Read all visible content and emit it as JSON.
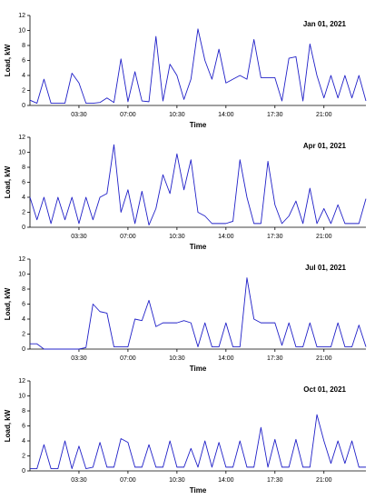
{
  "chart_data": [
    {
      "type": "line",
      "title": "Jan 01, 2021",
      "x_label": "Time",
      "y_label": "Load, kW",
      "color": "#2020c8",
      "xlim": [
        0,
        24
      ],
      "ylim": [
        0,
        12
      ],
      "yticks": [
        0,
        2,
        4,
        6,
        8,
        10,
        12
      ],
      "xticks": [
        {
          "value": 3.5,
          "label": "03:30"
        },
        {
          "value": 7,
          "label": "07:00"
        },
        {
          "value": 10.5,
          "label": "10:30"
        },
        {
          "value": 14,
          "label": "14:00"
        },
        {
          "value": 17.5,
          "label": "17:30"
        },
        {
          "value": 21,
          "label": "21:00"
        }
      ],
      "x": [
        0,
        0.5,
        1,
        1.5,
        2,
        2.5,
        3,
        3.5,
        4,
        4.5,
        5,
        5.5,
        6,
        6.5,
        7,
        7.5,
        8,
        8.5,
        9,
        9.5,
        10,
        10.5,
        11,
        11.5,
        12,
        12.5,
        13,
        13.5,
        14,
        14.5,
        15,
        15.5,
        16,
        16.5,
        17,
        17.5,
        18,
        18.5,
        19,
        19.5,
        20,
        20.5,
        21,
        21.5,
        22,
        22.5,
        23,
        23.5,
        24
      ],
      "values": [
        0.7,
        0.3,
        3.5,
        0.3,
        0.3,
        0.3,
        4.3,
        3.0,
        0.3,
        0.3,
        0.4,
        1.0,
        0.4,
        6.2,
        0.5,
        4.5,
        0.6,
        0.5,
        9.2,
        0.6,
        5.5,
        4.0,
        0.8,
        3.5,
        10.2,
        6.0,
        3.5,
        7.5,
        3.0,
        3.5,
        4.0,
        3.5,
        8.8,
        3.7,
        3.7,
        3.7,
        0.6,
        6.3,
        6.5,
        0.6,
        8.2,
        4.0,
        1.0,
        4.0,
        1.0,
        4.0,
        1.0,
        4.0,
        0.6
      ]
    },
    {
      "type": "line",
      "title": "Apr 01, 2021",
      "x_label": "Time",
      "y_label": "Load, kW",
      "color": "#2020c8",
      "xlim": [
        0,
        24
      ],
      "ylim": [
        0,
        12
      ],
      "yticks": [
        0,
        2,
        4,
        6,
        8,
        10,
        12
      ],
      "xticks": [
        {
          "value": 3.5,
          "label": "03:30"
        },
        {
          "value": 7,
          "label": "07:00"
        },
        {
          "value": 10.5,
          "label": "10:30"
        },
        {
          "value": 14,
          "label": "14:00"
        },
        {
          "value": 17.5,
          "label": "17:30"
        },
        {
          "value": 21,
          "label": "21:00"
        }
      ],
      "x": [
        0,
        0.5,
        1,
        1.5,
        2,
        2.5,
        3,
        3.5,
        4,
        4.5,
        5,
        5.5,
        6,
        6.5,
        7,
        7.5,
        8,
        8.5,
        9,
        9.5,
        10,
        10.5,
        11,
        11.5,
        12,
        12.5,
        13,
        13.5,
        14,
        14.5,
        15,
        15.5,
        16,
        16.5,
        17,
        17.5,
        18,
        18.5,
        19,
        19.5,
        20,
        20.5,
        21,
        21.5,
        22,
        22.5,
        23,
        23.5,
        24
      ],
      "values": [
        4.0,
        1.0,
        4.0,
        0.5,
        4.0,
        1.0,
        4.0,
        0.5,
        4.0,
        1.0,
        4.0,
        4.5,
        11.0,
        2.0,
        5.0,
        0.5,
        4.8,
        0.3,
        2.5,
        7.0,
        4.5,
        9.8,
        5.0,
        9.0,
        2.0,
        1.5,
        0.5,
        0.5,
        0.5,
        0.8,
        9.0,
        4.0,
        0.5,
        0.5,
        8.8,
        3.0,
        0.5,
        1.5,
        3.5,
        0.5,
        5.2,
        0.5,
        2.5,
        0.5,
        3.0,
        0.5,
        0.5,
        0.5,
        3.8
      ]
    },
    {
      "type": "line",
      "title": "Jul 01, 2021",
      "x_label": "Time",
      "y_label": "Load, kW",
      "color": "#2020c8",
      "xlim": [
        0,
        24
      ],
      "ylim": [
        0,
        12
      ],
      "yticks": [
        0,
        2,
        4,
        6,
        8,
        10,
        12
      ],
      "xticks": [
        {
          "value": 3.5,
          "label": "03:30"
        },
        {
          "value": 7,
          "label": "07:00"
        },
        {
          "value": 10.5,
          "label": "10:30"
        },
        {
          "value": 14,
          "label": "14:00"
        },
        {
          "value": 17.5,
          "label": "17:30"
        },
        {
          "value": 21,
          "label": "21:00"
        }
      ],
      "x": [
        0,
        0.5,
        1,
        1.5,
        2,
        2.5,
        3,
        3.5,
        4,
        4.5,
        5,
        5.5,
        6,
        6.5,
        7,
        7.5,
        8,
        8.5,
        9,
        9.5,
        10,
        10.5,
        11,
        11.5,
        12,
        12.5,
        13,
        13.5,
        14,
        14.5,
        15,
        15.5,
        16,
        16.5,
        17,
        17.5,
        18,
        18.5,
        19,
        19.5,
        20,
        20.5,
        21,
        21.5,
        22,
        22.5,
        23,
        23.5,
        24
      ],
      "values": [
        0.7,
        0.7,
        0,
        0,
        0,
        0,
        0,
        0,
        0.2,
        6.0,
        5.0,
        4.8,
        0.3,
        0.3,
        0.3,
        4.0,
        3.8,
        6.5,
        3.0,
        3.5,
        3.5,
        3.5,
        3.8,
        3.5,
        0.3,
        3.5,
        0.3,
        0.3,
        3.5,
        0.3,
        0.3,
        9.5,
        4.0,
        3.5,
        3.5,
        3.5,
        0.5,
        3.5,
        0.3,
        0.3,
        3.5,
        0.3,
        0.3,
        0.3,
        3.5,
        0.3,
        0.3,
        3.2,
        0.3
      ]
    },
    {
      "type": "line",
      "title": "Oct 01, 2021",
      "x_label": "Time",
      "y_label": "Load, kW",
      "color": "#2020c8",
      "xlim": [
        0,
        24
      ],
      "ylim": [
        0,
        12
      ],
      "yticks": [
        0,
        2,
        4,
        6,
        8,
        10,
        12
      ],
      "xticks": [
        {
          "value": 3.5,
          "label": "03:30"
        },
        {
          "value": 7,
          "label": "07:00"
        },
        {
          "value": 10.5,
          "label": "10:30"
        },
        {
          "value": 14,
          "label": "14:00"
        },
        {
          "value": 17.5,
          "label": "17:30"
        },
        {
          "value": 21,
          "label": "21:00"
        }
      ],
      "x": [
        0,
        0.5,
        1,
        1.5,
        2,
        2.5,
        3,
        3.5,
        4,
        4.5,
        5,
        5.5,
        6,
        6.5,
        7,
        7.5,
        8,
        8.5,
        9,
        9.5,
        10,
        10.5,
        11,
        11.5,
        12,
        12.5,
        13,
        13.5,
        14,
        14.5,
        15,
        15.5,
        16,
        16.5,
        17,
        17.5,
        18,
        18.5,
        19,
        19.5,
        20,
        20.5,
        21,
        21.5,
        22,
        22.5,
        23,
        23.5,
        24
      ],
      "values": [
        0.3,
        0.3,
        3.5,
        0.3,
        0.3,
        4.0,
        0.3,
        3.3,
        0.3,
        0.5,
        3.8,
        0.5,
        0.5,
        4.3,
        3.8,
        0.5,
        0.5,
        3.5,
        0.5,
        0.5,
        4.0,
        0.5,
        0.5,
        3.0,
        0.5,
        4.0,
        0.5,
        3.8,
        0.5,
        0.5,
        4.0,
        0.5,
        0.5,
        5.8,
        0.5,
        4.2,
        0.5,
        0.5,
        4.2,
        0.5,
        0.5,
        7.5,
        4.0,
        1.0,
        4.0,
        1.0,
        4.0,
        0.5,
        0.5
      ]
    }
  ]
}
